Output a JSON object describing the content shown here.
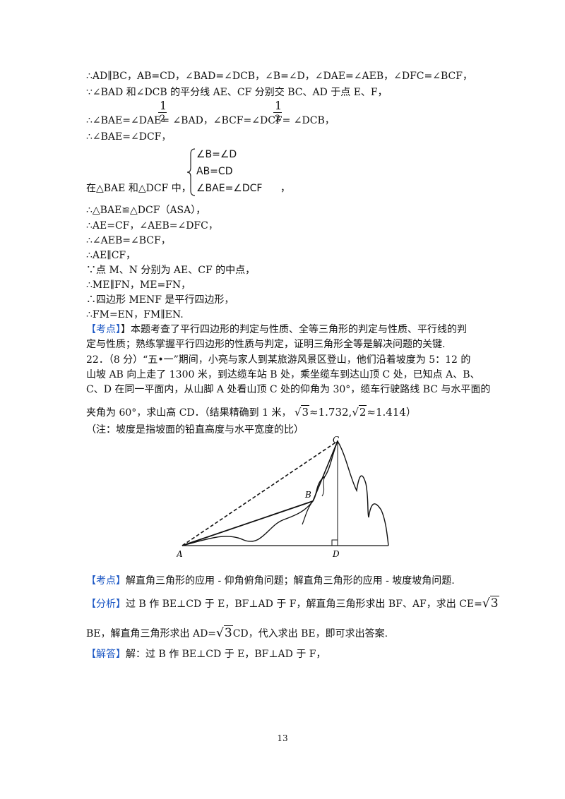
{
  "lines": {
    "l1": "∴AD∥BC，AB=CD，∠BAD=∠DCB，∠B=∠D，∠DAE=∠AEB，∠DFC=∠BCF，",
    "l2": "∵∠BAD 和∠DCB 的平分线 AE、CF 分别交 BC、AD 于点 E、F，",
    "l3": "∴∠BAE=∠DAE=  ∠BAD，∠BCF=∠DCF=  ∠DCB，",
    "l4": "∴∠BAE=∠DCF，",
    "l5": "在△BAE 和△DCF 中，",
    "l5_tail": "，",
    "l6": "∴△BAE≌△DCF（ASA），",
    "l7": "∴AE=CF，∠AEB=∠DFC，",
    "l8": "∴∠AEB=∠BCF，",
    "l9": "∴AE∥CF，",
    "l10": "∵点 M、N 分别为 AE、CF 的中点，",
    "l11": "∴ME∥FN，ME=FN，",
    "l12": "∴四边形 MENF 是平行四边形，",
    "l13": "∴FM=EN，FM∥EN."
  },
  "fraction": {
    "num": "1",
    "den": "2"
  },
  "system": {
    "row1": "∠B=∠D",
    "row2": "AB=CD",
    "row3": "∠BAE=∠DCF"
  },
  "kaodian1": {
    "tag": "【考点】",
    "text1": "】本题考查了平行四边形的判定与性质、全等三角形的判定与性质、平行线的判",
    "text2": "定与性质；熟练掌握平行四边形的性质与判定，证明三角形全等是解决问题的关键."
  },
  "q22": {
    "l1": "22．（8 分）“五•一”期间，小亮与家人到某旅游风景区登山，他们沿着坡度为 5：12 的",
    "l2": "山坡 AB 向上走了 1300 米，到达缆车站 B 处，乘坐缆车到达山顶 C 处，已知点 A、B、",
    "l3": "C、D 在同一平面内，从山脚 A 处看山顶 C 处的仰角为 30°，缆车行驶路线 BC 与水平面的",
    "l4": "夹角为 60°，求山高 CD．（结果精确到 1 米，",
    "l4_math": "≈1.732,",
    "l4_math2": "≈1.414",
    "l4_end": "）",
    "note": "（注：坡度是指坡面的铅直高度与水平宽度的比）",
    "rad3": "3",
    "rad2": "2"
  },
  "figure": {
    "label_a": "A",
    "label_b": "B",
    "label_c": "C",
    "label_d": "D"
  },
  "kaodian2": {
    "tag": "【考点】",
    "text": "解直角三角形的应用 - 仰角俯角问题；解直角三角形的应用 - 坡度坡角问题."
  },
  "fenxi": {
    "tag": "【分析】",
    "text1": "过 B 作 BE⊥CD 于 E，BF⊥AD 于 F，解直角三角形求出 BF、AF，求出 CE=",
    "text2a": "BE，解直角三角形求出 AD=",
    "text2b": "CD，代入求出 BE，即可求出答案.",
    "rad": "3"
  },
  "jieda": {
    "tag": "【解答】",
    "text": "解：过 B 作 BE⊥CD 于 E，BF⊥AD 于 F，"
  },
  "page_number": "13"
}
